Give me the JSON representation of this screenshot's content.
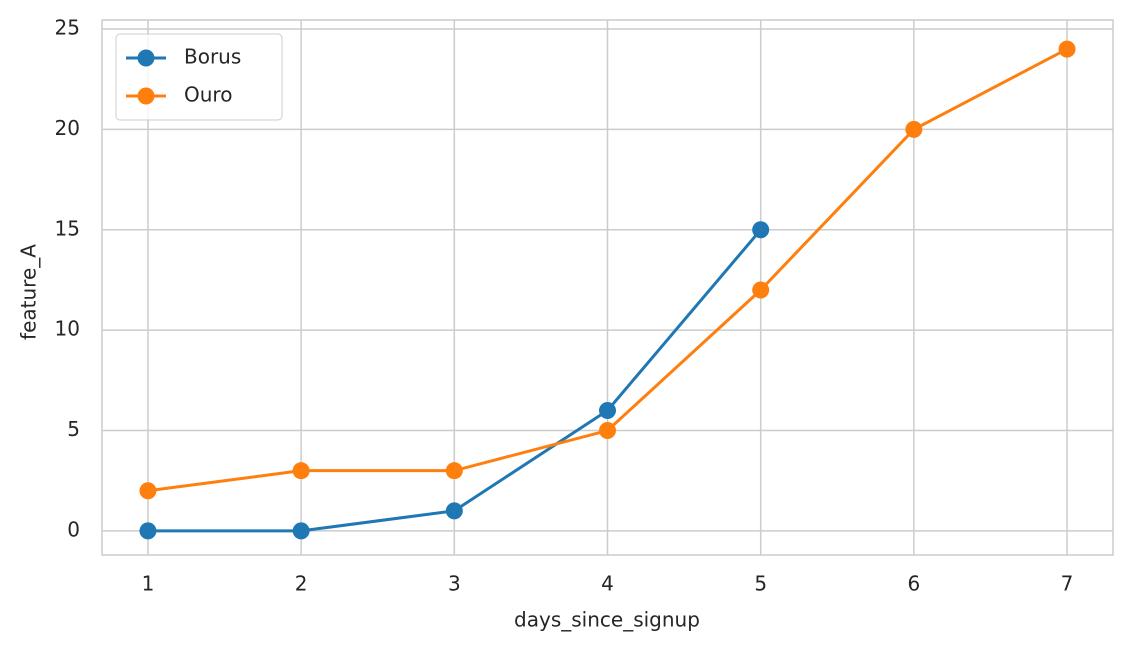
{
  "chart_data": {
    "type": "line",
    "x_label": "days_since_signup",
    "y_label": "feature_A",
    "x": [
      1,
      2,
      3,
      4,
      5,
      6,
      7
    ],
    "series": [
      {
        "name": "Borus",
        "color": "#1f77b4",
        "values": [
          0,
          0,
          1,
          6,
          15,
          null,
          null
        ]
      },
      {
        "name": "Ouro",
        "color": "#ff7f0e",
        "values": [
          2,
          3,
          3,
          5,
          12,
          20,
          24
        ]
      }
    ],
    "xlim": [
      0.7,
      7.3
    ],
    "xticks": [
      1,
      2,
      3,
      4,
      5,
      6,
      7
    ],
    "ylim": [
      -1.2,
      25.45
    ],
    "yticks": [
      0,
      5,
      10,
      15,
      20,
      25
    ],
    "grid": true,
    "legend": "upper-left"
  }
}
